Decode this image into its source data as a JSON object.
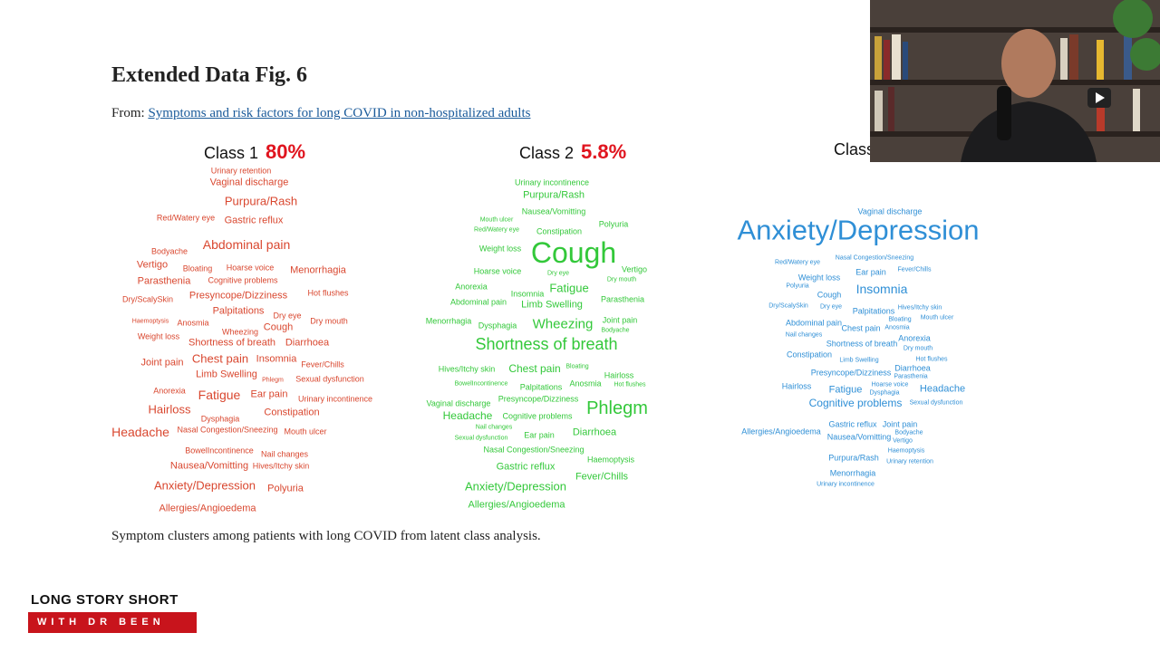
{
  "figure": {
    "title": "Extended Data Fig. 6",
    "from_label": "From:",
    "source_link": "Symptoms and risk factors for long COVID in non-hospitalized adults",
    "caption": "Symptom clusters among patients with long COVID from latent class analysis.",
    "clusters": [
      {
        "label": "Class 1",
        "share": "80%",
        "color": "#d9472f",
        "words": [
          "Urinary retention",
          "Vaginal discharge",
          "Purpura/Rash",
          "Red/Watery eye",
          "Gastric reflux",
          "Abdominal pain",
          "Bodyache",
          "Vertigo",
          "Bloating",
          "Hoarse voice",
          "Menorrhagia",
          "Parasthenia",
          "Cognitive problems",
          "Dry/ScalySkin",
          "Presyncope/Dizziness",
          "Hot flushes",
          "Palpitations",
          "Haemoptysis",
          "Anosmia",
          "Dry eye",
          "Dry mouth",
          "Wheezing",
          "Cough",
          "Weight loss",
          "Shortness of breath",
          "Diarrhoea",
          "Joint pain",
          "Chest pain",
          "Insomnia",
          "Fever/Chills",
          "Limb Swelling",
          "Phlegm",
          "Sexual dysfunction",
          "Anorexia",
          "Fatigue",
          "Ear pain",
          "Urinary incontinence",
          "Hairloss",
          "Constipation",
          "Dysphagia",
          "Headache",
          "Nasal Congestion/Sneezing",
          "Mouth ulcer",
          "BowelIncontinence",
          "Nail changes",
          "Nausea/Vomitting",
          "Hives/Itchy skin",
          "Anxiety/Depression",
          "Polyuria",
          "Allergies/Angioedema"
        ]
      },
      {
        "label": "Class 2",
        "share": "5.8%",
        "color": "#33c83a",
        "words": [
          "Urinary incontinence",
          "Purpura/Rash",
          "Nausea/Vomitting",
          "Mouth ulcer",
          "Polyuria",
          "Red/Watery eye",
          "Constipation",
          "Weight loss",
          "Cough",
          "Hoarse voice",
          "Dry eye",
          "Vertigo",
          "Dry mouth",
          "Anorexia",
          "Fatigue",
          "Insomnia",
          "Parasthenia",
          "Abdominal pain",
          "Limb Swelling",
          "Menorrhagia",
          "Dysphagia",
          "Wheezing",
          "Joint pain",
          "Bodyache",
          "Shortness of breath",
          "Hives/Itchy skin",
          "Chest pain",
          "Bloating",
          "Hairloss",
          "BowelIncontinence",
          "Palpitations",
          "Anosmia",
          "Hot flushes",
          "Presyncope/Dizziness",
          "Phlegm",
          "Vaginal discharge",
          "Headache",
          "Cognitive problems",
          "Nail changes",
          "Ear pain",
          "Diarrhoea",
          "Sexual dysfunction",
          "Nasal Congestion/Sneezing",
          "Haemoptysis",
          "Gastric reflux",
          "Fever/Chills",
          "Anxiety/Depression",
          "Allergies/Angioedema"
        ]
      },
      {
        "label": "Class",
        "color": "#2f8fd6",
        "words": [
          "Vaginal discharge",
          "Anxiety/Depression",
          "Nasal Congestion/Sneezing",
          "Red/Watery eye",
          "Fever/Chills",
          "Weight loss",
          "Ear pain",
          "Polyuria",
          "Insomnia",
          "Cough",
          "Dry/ScalySkin",
          "Dry eye",
          "Hives/Itchy skin",
          "Palpitations",
          "Bloating",
          "Mouth ulcer",
          "Abdominal pain",
          "Chest pain",
          "Anosmia",
          "Nail changes",
          "Anorexia",
          "Shortness of breath",
          "Dry mouth",
          "Constipation",
          "Limb Swelling",
          "Hot flushes",
          "Diarrhoea",
          "Parasthenia",
          "Presyncope/Dizziness",
          "Hoarse voice",
          "Hairloss",
          "Fatigue",
          "Dysphagia",
          "Headache",
          "Cognitive problems",
          "Sexual dysfunction",
          "Gastric reflux",
          "Joint pain",
          "Allergies/Angioedema",
          "Bodyache",
          "Nausea/Vomitting",
          "Vertigo",
          "Haemoptysis",
          "Purpura/Rash",
          "Urinary retention",
          "Menorrhagia",
          "Urinary incontinence"
        ]
      }
    ]
  },
  "branding": {
    "show": "LONG STORY SHORT",
    "host": "WITH DR BEEN"
  }
}
